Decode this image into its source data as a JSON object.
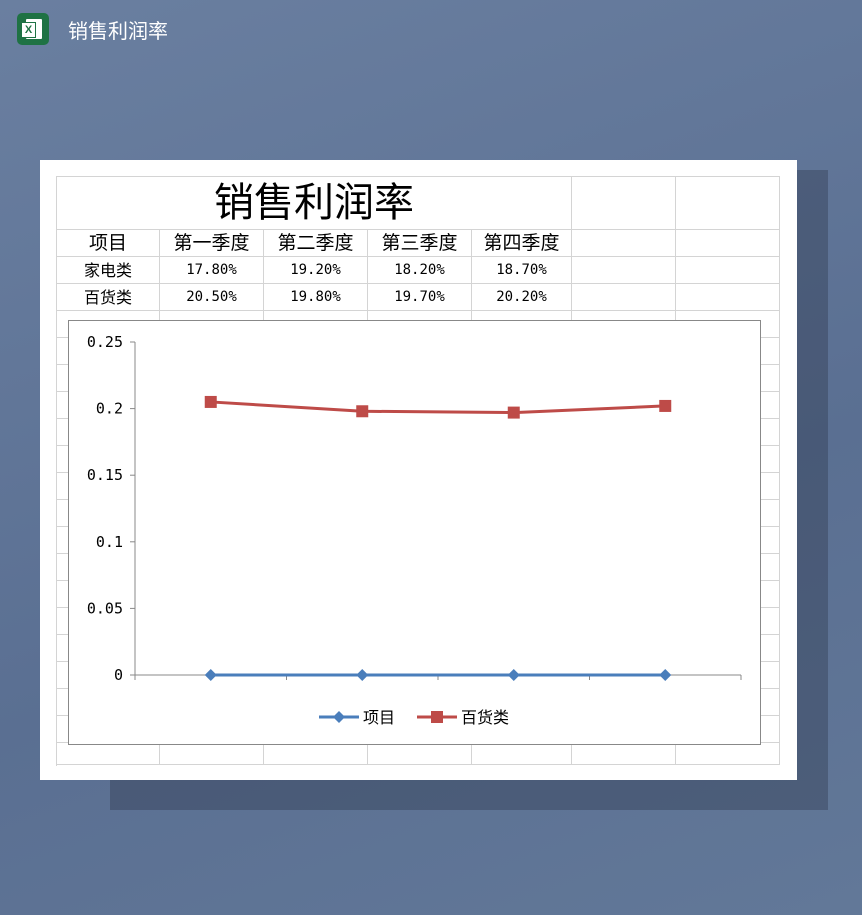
{
  "window": {
    "title": "销售利润率",
    "icon": "excel-icon"
  },
  "sheet": {
    "title": "销售利润率",
    "headers": [
      "项目",
      "第一季度",
      "第二季度",
      "第三季度",
      "第四季度"
    ],
    "rows": [
      [
        "家电类",
        "17.80%",
        "19.20%",
        "18.20%",
        "18.70%"
      ],
      [
        "百货类",
        "20.50%",
        "19.80%",
        "19.70%",
        "20.20%"
      ]
    ]
  },
  "chart_data": {
    "type": "line",
    "categories": [
      "",
      "",
      "",
      ""
    ],
    "ylim": [
      0,
      0.25
    ],
    "yticks": [
      "0",
      "0.05",
      "0.1",
      "0.15",
      "0.2",
      "0.25"
    ],
    "legend_position": "bottom",
    "grid": false,
    "series": [
      {
        "name": "项目",
        "values": [
          0,
          0,
          0,
          0
        ],
        "color": "#4a7ebb",
        "marker": "diamond"
      },
      {
        "name": "百货类",
        "values": [
          0.205,
          0.198,
          0.197,
          0.202
        ],
        "color": "#be4b48",
        "marker": "square"
      }
    ]
  }
}
